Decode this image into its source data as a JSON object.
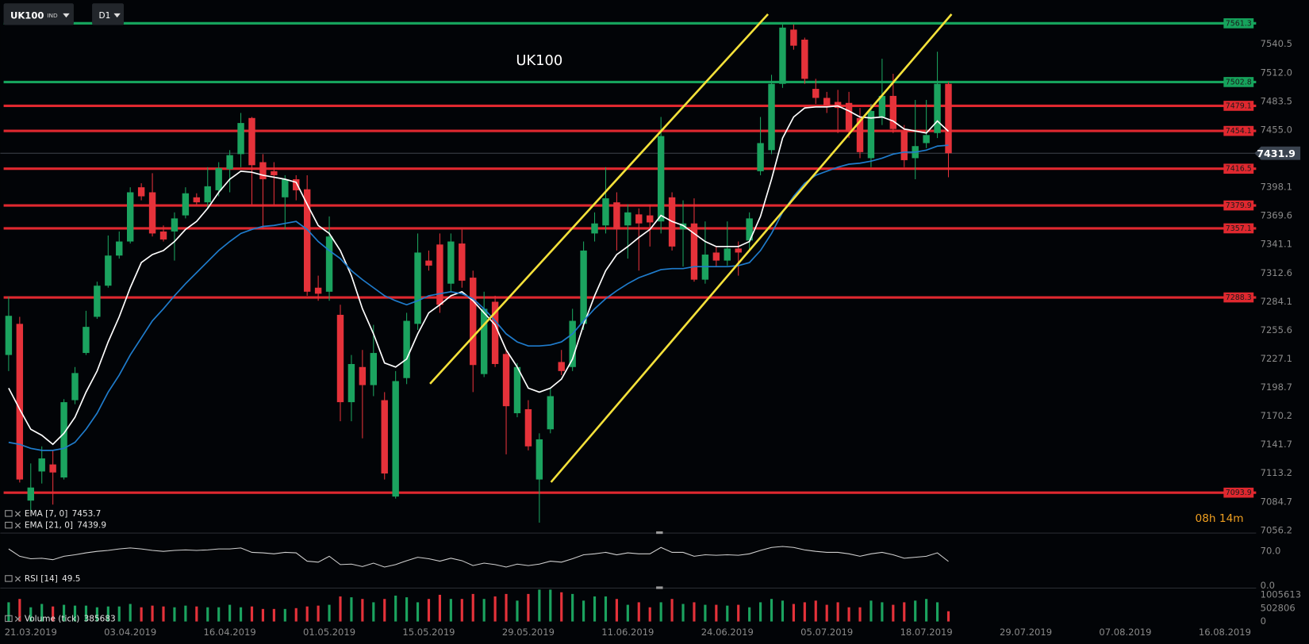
{
  "toolbar": {
    "symbol": "UK100",
    "badge": "IND",
    "timeframe": "D1"
  },
  "countdown": "08h 14m",
  "chart_data": [
    {
      "type": "candlestick",
      "title": "UK100",
      "categories": [
        null,
        null,
        "21.03.2019",
        null,
        null,
        null,
        null,
        null,
        null,
        null,
        null,
        "03.04.2019",
        null,
        null,
        null,
        null,
        null,
        null,
        null,
        null,
        "16.04.2019",
        null,
        null,
        null,
        null,
        null,
        null,
        null,
        null,
        "01.05.2019",
        null,
        null,
        null,
        null,
        null,
        null,
        null,
        null,
        "15.05.2019",
        null,
        null,
        null,
        null,
        null,
        null,
        null,
        null,
        "29.05.2019",
        null,
        null,
        null,
        null,
        null,
        null,
        null,
        null,
        "11.06.2019",
        null,
        null,
        null,
        null,
        null,
        null,
        null,
        null,
        "24.06.2019",
        null,
        null,
        null,
        null,
        null,
        null,
        null,
        null,
        "05.07.2019",
        null,
        null,
        null,
        null,
        null,
        null,
        null,
        null,
        "18.07.2019",
        null,
        null,
        null,
        null,
        null,
        null,
        null,
        null,
        "29.07.2019",
        null,
        null,
        null,
        null,
        null,
        null,
        null,
        null,
        "07.08.2019",
        null,
        null,
        null,
        null,
        null,
        null,
        null,
        null,
        "16.08.2019"
      ],
      "open": [
        7231,
        7262,
        7086,
        7115,
        7122,
        7109,
        7186,
        7233,
        7269,
        7300,
        7330,
        7344,
        7398,
        7393,
        7354,
        7354,
        7370,
        7388,
        7383,
        7395,
        7416,
        7431,
        7467,
        7423,
        7414,
        7388,
        7406,
        7396,
        7298,
        7294,
        7271,
        7184,
        7219,
        7201,
        7186,
        7090,
        7208,
        7262,
        7325,
        7341,
        7302,
        7342,
        7308,
        7212,
        7284,
        7232,
        7173,
        7177,
        7107,
        7157,
        7224,
        7219,
        7262,
        7352,
        7360,
        7383,
        7360,
        7371,
        7370,
        7364,
        7388,
        7356,
        7362,
        7306,
        7333,
        7325,
        7337,
        7345,
        7414,
        7435,
        7501,
        7555,
        7545,
        7496,
        7487,
        7483,
        7482,
        7467,
        7427,
        7468,
        7489,
        7454,
        7427,
        7442,
        7452,
        7501,
        null,
        null,
        null,
        null,
        null,
        null,
        null,
        null,
        null,
        null,
        null,
        null,
        null,
        null,
        null,
        null,
        null,
        null,
        null,
        null,
        null,
        null,
        null,
        null,
        null
      ],
      "high": [
        7289,
        7269,
        7123,
        7140,
        7136,
        7187,
        7219,
        7275,
        7304,
        7350,
        7354,
        7398,
        7402,
        7412,
        7360,
        7373,
        7398,
        7392,
        7418,
        7423,
        7435,
        7472,
        7468,
        7431,
        7423,
        7410,
        7410,
        7410,
        7310,
        7369,
        7281,
        7231,
        7236,
        7261,
        7194,
        7215,
        7273,
        7352,
        7335,
        7352,
        7352,
        7356,
        7315,
        7294,
        7290,
        7236,
        7223,
        7186,
        7153,
        7198,
        7236,
        7277,
        7344,
        7373,
        7418,
        7393,
        7381,
        7377,
        7381,
        7468,
        7393,
        7385,
        7387,
        7364,
        7339,
        7364,
        7344,
        7373,
        7468,
        7510,
        7560,
        7560,
        7547,
        7506,
        7493,
        7495,
        7493,
        7477,
        7481,
        7526,
        7511,
        7460,
        7485,
        7485,
        7533,
        7503,
        null,
        null,
        null,
        null,
        null,
        null,
        null,
        null,
        null,
        null,
        null,
        null,
        null,
        null,
        null,
        null,
        null,
        null,
        null,
        null,
        null,
        null,
        null,
        null,
        null
      ],
      "low": [
        7215,
        7104,
        7076,
        7103,
        7082,
        7107,
        7182,
        7231,
        7267,
        7298,
        7327,
        7342,
        7385,
        7349,
        7344,
        7325,
        7367,
        7381,
        7377,
        7389,
        7393,
        7418,
        7381,
        7356,
        7381,
        7356,
        7385,
        7290,
        7285,
        7285,
        7165,
        7165,
        7148,
        7190,
        7107,
        7088,
        7202,
        7256,
        7315,
        7273,
        7294,
        7298,
        7194,
        7209,
        7219,
        7132,
        7169,
        7136,
        7064,
        7153,
        7211,
        7215,
        7256,
        7344,
        7352,
        7335,
        7327,
        7315,
        7339,
        7352,
        7335,
        7319,
        7304,
        7302,
        7319,
        7320,
        7310,
        7335,
        7410,
        7431,
        7497,
        7535,
        7501,
        7481,
        7472,
        7452,
        7447,
        7427,
        7418,
        7460,
        7452,
        7418,
        7406,
        7437,
        7447,
        7408,
        null,
        null,
        null,
        null,
        null,
        null,
        null,
        null,
        null,
        null,
        null,
        null,
        null,
        null,
        null,
        null,
        null,
        null,
        null,
        null,
        null,
        null,
        null,
        null,
        null
      ],
      "close": [
        7270,
        7107,
        7099,
        7128,
        7114,
        7184,
        7213,
        7259,
        7300,
        7330,
        7344,
        7393,
        7389,
        7352,
        7346,
        7367,
        7392,
        7383,
        7399,
        7417,
        7430,
        7462,
        7420,
        7406,
        7410,
        7406,
        7395,
        7294,
        7292,
        7349,
        7184,
        7222,
        7201,
        7233,
        7113,
        7205,
        7265,
        7333,
        7320,
        7281,
        7344,
        7305,
        7221,
        7277,
        7222,
        7180,
        7219,
        7140,
        7147,
        7190,
        7215,
        7265,
        7335,
        7362,
        7387,
        7356,
        7373,
        7362,
        7363,
        7449,
        7339,
        7362,
        7306,
        7331,
        7325,
        7337,
        7333,
        7367,
        7442,
        7501,
        7557,
        7539,
        7506,
        7487,
        7478,
        7477,
        7454,
        7433,
        7474,
        7489,
        7456,
        7425,
        7439,
        7450,
        7501,
        7431.9,
        null,
        null,
        null,
        null,
        null,
        null,
        null,
        null,
        null,
        null,
        null,
        null,
        null,
        null,
        null,
        null,
        null,
        null,
        null,
        null,
        null,
        null,
        null,
        null,
        null
      ],
      "up_color": "#1ba35f",
      "down_color": "#e5323a",
      "series": [
        {
          "name": "EMA [7, 0]",
          "color": "#ffffff",
          "values": [
            7198,
            7177,
            7157,
            7151,
            7142,
            7153,
            7169,
            7194,
            7215,
            7244,
            7269,
            7298,
            7323,
            7331,
            7335,
            7344,
            7356,
            7364,
            7377,
            7393,
            7406,
            7414,
            7413,
            7410,
            7408,
            7406,
            7403,
            7381,
            7360,
            7352,
            7335,
            7310,
            7277,
            7252,
            7223,
            7219,
            7227,
            7252,
            7273,
            7281,
            7290,
            7294,
            7285,
            7273,
            7261,
            7236,
            7219,
            7198,
            7194,
            7198,
            7207,
            7227,
            7261,
            7290,
            7315,
            7331,
            7339,
            7348,
            7356,
            7370,
            7364,
            7360,
            7352,
            7344,
            7339,
            7339,
            7339,
            7344,
            7369,
            7406,
            7447,
            7468,
            7477,
            7478,
            7478,
            7479,
            7474,
            7468,
            7467,
            7468,
            7464,
            7456,
            7454,
            7452,
            7464,
            7453.7,
            null,
            null,
            null,
            null,
            null,
            null,
            null,
            null,
            null,
            null,
            null,
            null,
            null,
            null,
            null,
            null,
            null,
            null,
            null,
            null,
            null,
            null,
            null,
            null,
            null
          ]
        },
        {
          "name": "EMA [21, 0]",
          "color": "#1f7ccc",
          "values": [
            7144,
            7142,
            7138,
            7136,
            7136,
            7138,
            7144,
            7157,
            7173,
            7194,
            7211,
            7231,
            7248,
            7265,
            7277,
            7290,
            7302,
            7313,
            7324,
            7335,
            7344,
            7352,
            7356,
            7359,
            7360,
            7362,
            7364,
            7356,
            7344,
            7335,
            7327,
            7315,
            7306,
            7298,
            7290,
            7285,
            7281,
            7285,
            7290,
            7292,
            7294,
            7292,
            7287,
            7277,
            7265,
            7252,
            7244,
            7240,
            7240,
            7241,
            7244,
            7252,
            7265,
            7277,
            7287,
            7295,
            7302,
            7308,
            7312,
            7316,
            7317,
            7317,
            7319,
            7319,
            7319,
            7319,
            7320,
            7323,
            7335,
            7352,
            7373,
            7389,
            7402,
            7410,
            7414,
            7418,
            7421,
            7422,
            7424,
            7427,
            7431,
            7433,
            7433,
            7435,
            7439,
            7439.9,
            null,
            null,
            null,
            null,
            null,
            null,
            null,
            null,
            null,
            null,
            null,
            null,
            null,
            null,
            null,
            null,
            null,
            null,
            null,
            null,
            null,
            null,
            null,
            null,
            null
          ]
        }
      ],
      "ylim": [
        7054.5,
        7584.5
      ],
      "yticks": [
        7540.5,
        {
          "value": 7512,
          "label": "7512.0"
        },
        7483.5,
        {
          "value": 7455,
          "label": "7455.0"
        },
        7398.1,
        7369.6,
        7341.1,
        7312.6,
        7284.1,
        7255.6,
        7227.1,
        7198.7,
        7170.2,
        7141.7,
        7113.2,
        7084.7,
        7056.2
      ],
      "levels": [
        {
          "value": 7561.3,
          "color": "#16a35c"
        },
        {
          "value": 7502.8,
          "color": "#16a35c"
        },
        {
          "value": 7479.1,
          "color": "#e0282f"
        },
        {
          "value": 7454.1,
          "color": "#e0282f"
        },
        {
          "value": 7416.5,
          "color": "#e0282f"
        },
        {
          "value": 7379.9,
          "color": "#e0282f"
        },
        {
          "value": 7357.1,
          "color": "#e0282f"
        },
        {
          "value": 7288.3,
          "color": "#e0282f"
        },
        {
          "value": 7093.9,
          "color": "#e0282f"
        }
      ],
      "last_price": 7431.9
    },
    {
      "type": "line",
      "series": [
        {
          "name": "RSI [14]",
          "color": "#d0d0d0",
          "values": [
            75,
            60,
            55,
            56,
            53,
            60,
            63,
            67,
            70,
            72,
            75,
            77,
            75,
            72,
            70,
            72,
            73,
            72,
            73,
            75,
            75,
            77,
            68,
            67,
            65,
            68,
            67,
            50,
            48,
            60,
            43,
            44,
            39,
            46,
            38,
            43,
            51,
            58,
            55,
            50,
            56,
            51,
            41,
            46,
            43,
            38,
            44,
            41,
            44,
            50,
            48,
            55,
            63,
            65,
            68,
            63,
            67,
            65,
            65,
            78,
            68,
            68,
            60,
            63,
            62,
            63,
            62,
            65,
            72,
            78,
            80,
            78,
            73,
            70,
            68,
            68,
            65,
            60,
            65,
            68,
            63,
            56,
            58,
            60,
            67,
            49.5,
            null,
            null,
            null,
            null,
            null,
            null,
            null,
            null,
            null,
            null,
            null,
            null,
            null,
            null,
            null,
            null,
            null,
            null,
            null,
            null,
            null,
            null,
            null,
            null,
            null
          ]
        }
      ],
      "ylim": [
        -5,
        104
      ],
      "yticks": [
        {
          "value": 0,
          "label": "0.0"
        },
        {
          "value": 70,
          "label": "70.0"
        }
      ]
    },
    {
      "type": "bar",
      "series": [
        {
          "name": "Volume (tick)",
          "values": [
            722800,
            848500,
            534200,
            659900,
            565700,
            628500,
            597100,
            597100,
            534200,
            565700,
            565700,
            659900,
            534200,
            597100,
            565700,
            534200,
            597100,
            565700,
            534200,
            534200,
            628500,
            534200,
            565700,
            471400,
            471400,
            471400,
            502800,
            565700,
            597100,
            628500,
            942800,
            911300,
            848500,
            722800,
            848500,
            974200,
            911300,
            722800,
            848500,
            1005600,
            848500,
            848500,
            1037000,
            848500,
            942800,
            1037000,
            785600,
            1037000,
            1200000,
            1200000,
            1099900,
            1037000,
            785600,
            942800,
            942800,
            848500,
            628500,
            722800,
            534200,
            722800,
            848500,
            659900,
            722800,
            628500,
            628500,
            597100,
            628500,
            534200,
            722800,
            848500,
            785600,
            659900,
            722800,
            785600,
            628500,
            722800,
            534200,
            534200,
            785600,
            722800,
            628500,
            722800,
            785600,
            848500,
            722800,
            385683,
            null,
            null,
            null,
            null,
            null,
            null,
            null,
            null,
            null,
            null,
            null,
            null,
            null,
            null,
            null,
            null,
            null,
            null,
            null,
            null,
            null,
            null,
            null,
            null,
            null
          ]
        }
      ],
      "ylim": [
        0,
        1225600
      ],
      "yticks": [
        0,
        502806,
        1005613
      ]
    }
  ]
}
